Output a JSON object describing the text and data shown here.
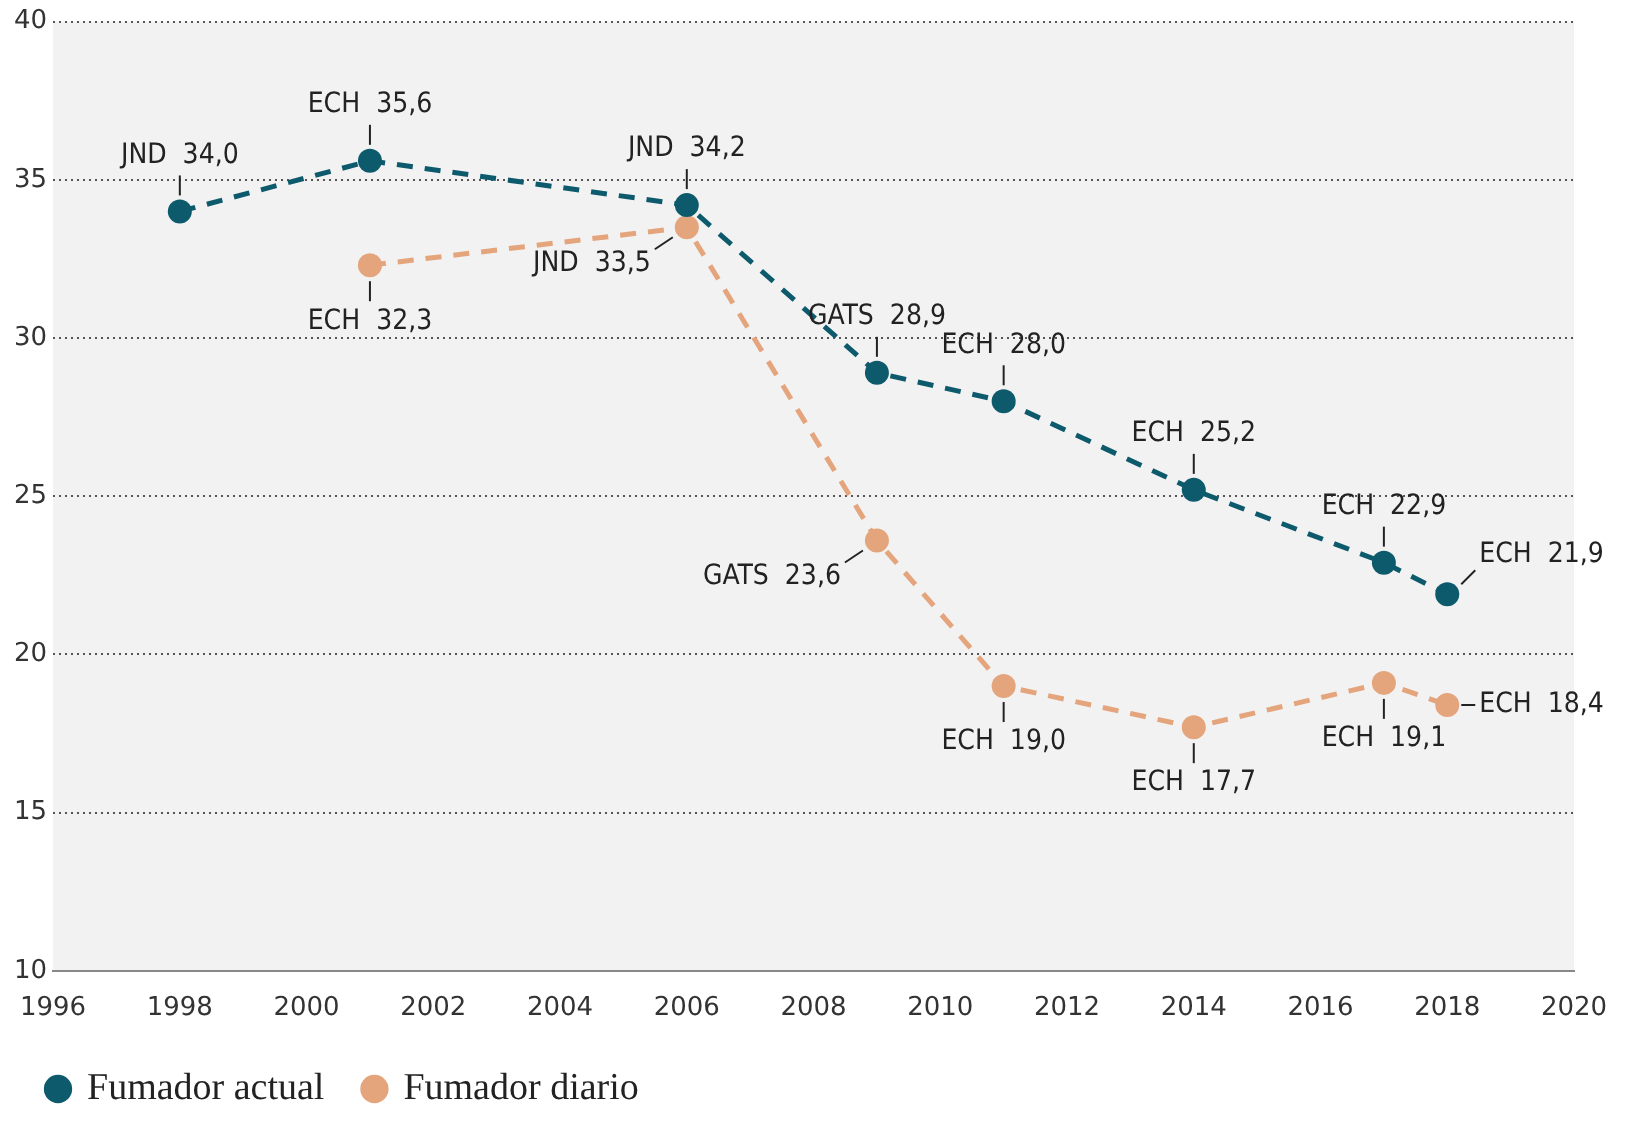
{
  "chart_data": {
    "type": "line",
    "series": [
      {
        "name": "Fumador actual",
        "color": "#0d5a6c",
        "x": [
          1998,
          2001,
          2006,
          2009,
          2011,
          2014,
          2017,
          2018
        ],
        "values": [
          34.0,
          35.6,
          34.2,
          28.9,
          28.0,
          25.2,
          22.9,
          21.9
        ],
        "value_labels": [
          "JND  34,0",
          "ECH  35,6",
          "JND  34,2",
          "GATS  28,9",
          "ECH  28,0",
          "ECH  25,2",
          "ECH  22,9",
          "ECH  21,9"
        ]
      },
      {
        "name": "Fumador diario",
        "color": "#e4a47c",
        "x": [
          2001,
          2006,
          2009,
          2011,
          2014,
          2017,
          2018
        ],
        "values": [
          32.3,
          33.5,
          23.6,
          19.0,
          17.7,
          19.1,
          18.4
        ],
        "value_labels": [
          "ECH  32,3",
          "JND  33,5",
          "GATS  23,6",
          "ECH  19,0",
          "ECH  17,7",
          "ECH  19,1",
          "ECH  18,4"
        ]
      }
    ],
    "xlim": [
      1996,
      2020
    ],
    "xticks": [
      1996,
      1998,
      2000,
      2002,
      2004,
      2006,
      2008,
      2010,
      2012,
      2014,
      2016,
      2018,
      2020
    ],
    "ylim": [
      10,
      40
    ],
    "yticks": [
      10,
      15,
      20,
      25,
      30,
      35,
      40
    ],
    "grid": "y",
    "legend": "bottom left",
    "marker": "circle",
    "line_style": "dashed"
  }
}
